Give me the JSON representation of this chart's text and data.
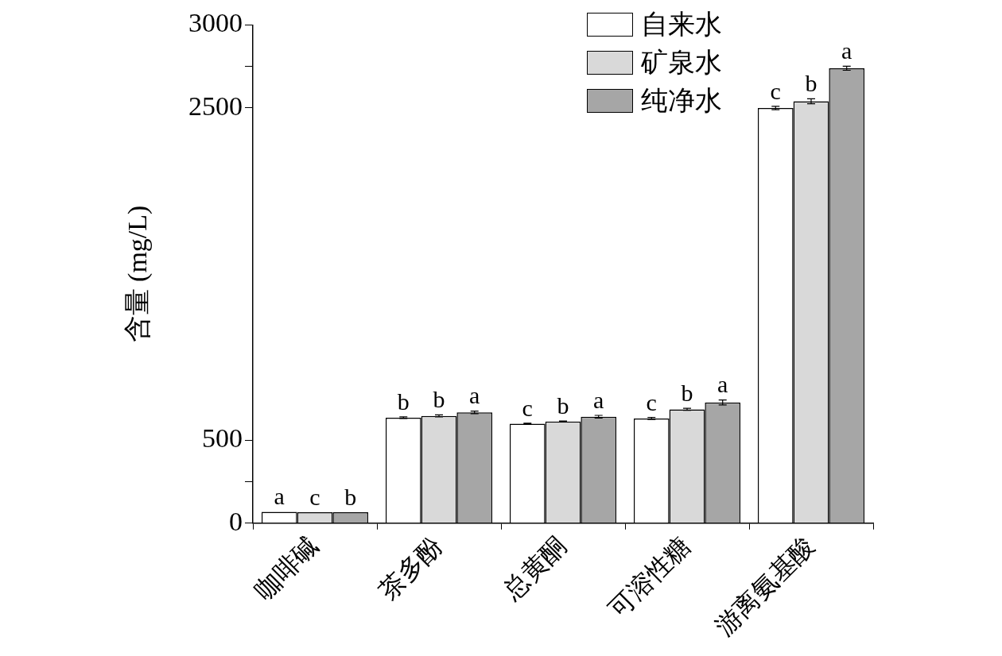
{
  "chart_data": {
    "type": "bar",
    "categories": [
      "咖啡碱",
      "茶多酚",
      "总黄酮",
      "可溶性糖",
      "游离氨基酸"
    ],
    "ylabel": "含量 (mg/L)",
    "series": [
      {
        "name": "自来水",
        "color": "#ffffff",
        "values": [
          68,
          635,
          599,
          630,
          2500
        ],
        "errors": [
          null,
          5,
          3,
          6,
          10
        ],
        "value_labels": [
          "a",
          "b",
          "c",
          "c",
          "c"
        ]
      },
      {
        "name": "矿泉水",
        "color": "#d9d9d9",
        "values": [
          66,
          646,
          612,
          685,
          2540
        ],
        "errors": [
          null,
          6,
          3,
          6,
          15
        ],
        "value_labels": [
          "c",
          "b",
          "b",
          "b",
          "b"
        ]
      },
      {
        "name": "纯净水",
        "color": "#a6a6a6",
        "values": [
          66,
          667,
          641,
          727,
          2739
        ],
        "errors": [
          null,
          8,
          8,
          15,
          12
        ],
        "value_labels": [
          "b",
          "a",
          "a",
          "a",
          "a"
        ]
      }
    ],
    "ylim": [
      0,
      3000
    ],
    "yticks": [
      0,
      {
        "value": 250,
        "label": null
      },
      500,
      2500,
      {
        "value": 2750,
        "label": null
      },
      3000
    ],
    "legend": "top right"
  }
}
